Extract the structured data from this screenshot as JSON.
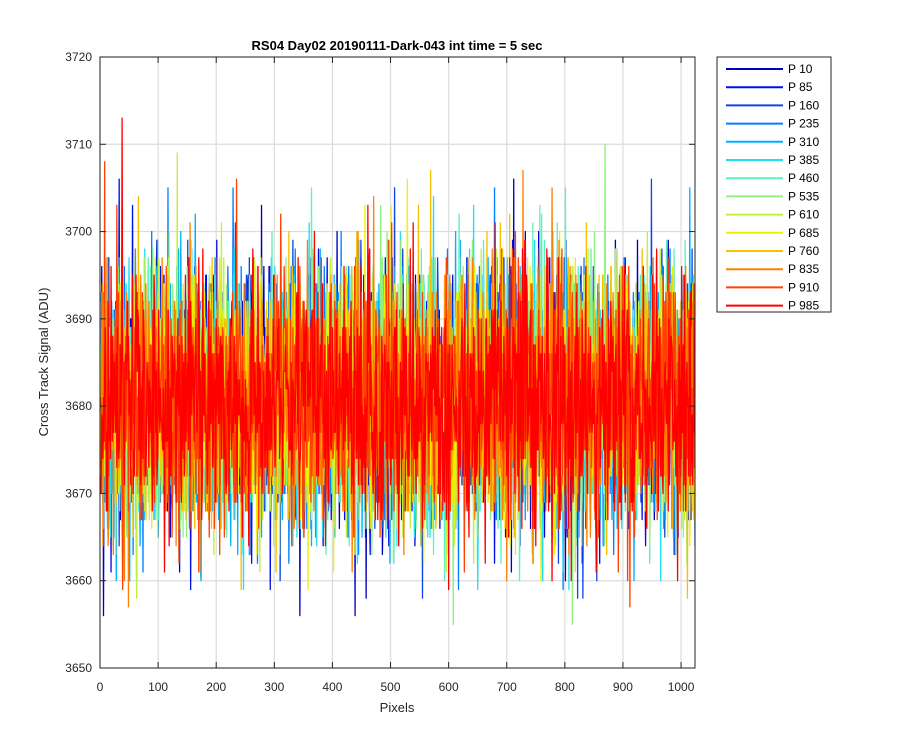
{
  "chart_data": {
    "type": "line",
    "title": "RS04 Day02 20190111-Dark-043 int time = 5 sec",
    "xlabel": "Pixels",
    "ylabel": "Cross Track Signal (ADU)",
    "xlim": [
      0,
      1024
    ],
    "ylim": [
      3650,
      3720
    ],
    "xticks": [
      0,
      100,
      200,
      300,
      400,
      500,
      600,
      700,
      800,
      900,
      1000
    ],
    "yticks": [
      3650,
      3660,
      3670,
      3680,
      3690,
      3700,
      3710,
      3720
    ],
    "grid": true,
    "legend_position": "outside-right",
    "samples_per_series": 1024,
    "noise_profile": "dark-frame signal, approx. mean 3681 ADU, std 7 ADU, range about 3655–3713 ADU",
    "series": [
      {
        "name": "P 10",
        "color": "#0000bf",
        "mean": 3681,
        "std": 7,
        "min": 3656,
        "max": 3706
      },
      {
        "name": "P 85",
        "color": "#0010e6",
        "mean": 3681,
        "std": 7,
        "min": 3659,
        "max": 3706
      },
      {
        "name": "P 160",
        "color": "#1046e6",
        "mean": 3681,
        "std": 7,
        "min": 3658,
        "max": 3706
      },
      {
        "name": "P 235",
        "color": "#0080ff",
        "mean": 3681,
        "std": 7,
        "min": 3659,
        "max": 3705
      },
      {
        "name": "P 310",
        "color": "#00b0ff",
        "mean": 3681,
        "std": 7,
        "min": 3660,
        "max": 3705
      },
      {
        "name": "P 385",
        "color": "#20e0f0",
        "mean": 3681,
        "std": 7,
        "min": 3659,
        "max": 3704
      },
      {
        "name": "P 460",
        "color": "#60f0c0",
        "mean": 3681,
        "std": 7,
        "min": 3660,
        "max": 3705
      },
      {
        "name": "P 535",
        "color": "#90f080",
        "mean": 3681,
        "std": 7,
        "min": 3655,
        "max": 3710
      },
      {
        "name": "P 610",
        "color": "#c0f040",
        "mean": 3681,
        "std": 7,
        "min": 3658,
        "max": 3709
      },
      {
        "name": "P 685",
        "color": "#f0f000",
        "mean": 3681,
        "std": 7,
        "min": 3659,
        "max": 3706
      },
      {
        "name": "P 760",
        "color": "#f8c000",
        "mean": 3681,
        "std": 7,
        "min": 3658,
        "max": 3707
      },
      {
        "name": "P 835",
        "color": "#ff8000",
        "mean": 3681,
        "std": 7,
        "min": 3657,
        "max": 3707
      },
      {
        "name": "P 910",
        "color": "#ff4000",
        "mean": 3681,
        "std": 7,
        "min": 3657,
        "max": 3708
      },
      {
        "name": "P 985",
        "color": "#ff0000",
        "mean": 3681,
        "std": 7,
        "min": 3659,
        "max": 3713
      }
    ]
  }
}
